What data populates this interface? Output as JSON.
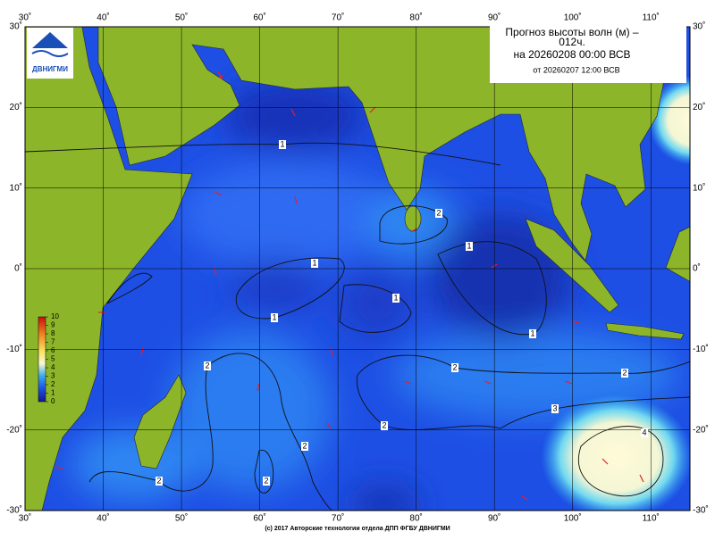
{
  "header": {
    "title_lines": [
      "Прогноз высоты волн (м) –",
      "012ч.",
      "на 20260208 00:00 ВСВ",
      "от 20260207 12:00 ВСВ"
    ]
  },
  "logo": {
    "text": "ДВНИГМИ"
  },
  "map": {
    "xlim": [
      30,
      115
    ],
    "ylim": [
      -30,
      30
    ],
    "xticks": [
      {
        "value": 30,
        "label": "30˚"
      },
      {
        "value": 40,
        "label": "40˚"
      },
      {
        "value": 50,
        "label": "50˚"
      },
      {
        "value": 60,
        "label": "60˚"
      },
      {
        "value": 70,
        "label": "70˚"
      },
      {
        "value": 80,
        "label": "80˚"
      },
      {
        "value": 90,
        "label": "90˚"
      },
      {
        "value": 100,
        "label": "100˚"
      },
      {
        "value": 110,
        "label": "110˚"
      }
    ],
    "yticks": [
      {
        "value": 30,
        "label": "30˚"
      },
      {
        "value": 20,
        "label": "20˚"
      },
      {
        "value": 10,
        "label": "10˚"
      },
      {
        "value": 0,
        "label": "0˚"
      },
      {
        "value": -10,
        "label": "-10˚"
      },
      {
        "value": -20,
        "label": "-20˚"
      },
      {
        "value": -30,
        "label": "-30˚"
      }
    ],
    "contour_labels": [
      "1",
      "2",
      "1",
      "1",
      "1",
      "1",
      "1",
      "2",
      "2",
      "2",
      "3",
      "2",
      "2",
      "4",
      "2",
      "2"
    ]
  },
  "colorbar": {
    "ticks": [
      10,
      9,
      8,
      7,
      6,
      5,
      4,
      3,
      2,
      1,
      0
    ]
  },
  "footer": {
    "text": "(c) 2017 Авторские технологии отдела ДПП ФГБУ ДВНИГМИ"
  }
}
